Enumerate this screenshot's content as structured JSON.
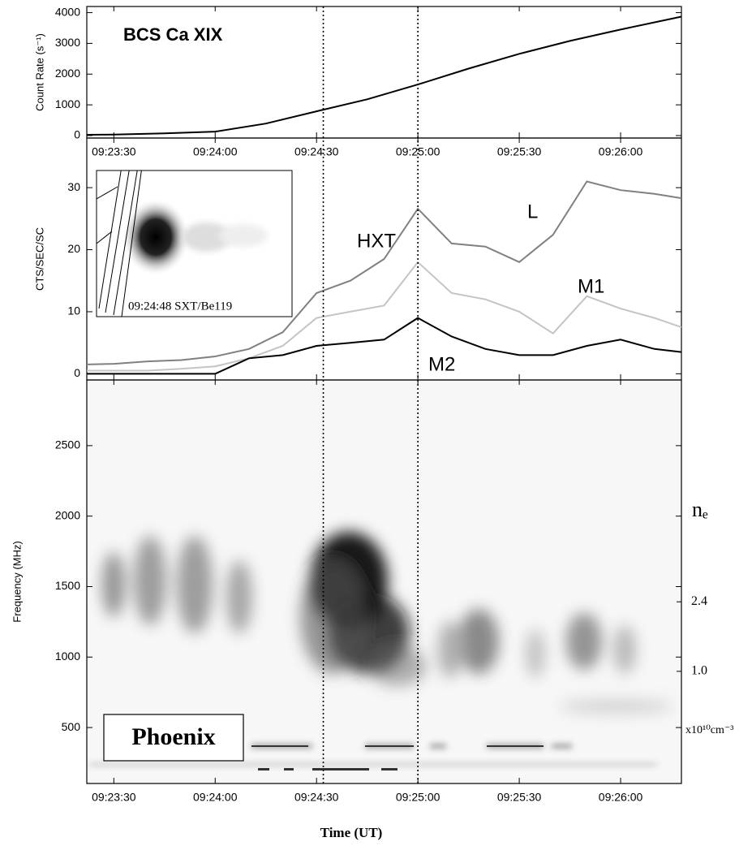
{
  "chart_data": [
    {
      "type": "line",
      "title": "BCS Ca XIX",
      "ylabel": "Count Rate (s⁻¹)",
      "x": [
        "09:23:22",
        "09:23:30",
        "09:23:45",
        "09:24:00",
        "09:24:15",
        "09:24:30",
        "09:24:45",
        "09:25:00",
        "09:25:15",
        "09:25:30",
        "09:25:45",
        "09:26:00",
        "09:26:18"
      ],
      "values": [
        25,
        30,
        70,
        130,
        390,
        790,
        1180,
        1660,
        2180,
        2660,
        3080,
        3450,
        3870
      ],
      "color": "#000000",
      "xlim": [
        "09:23:22",
        "09:26:18"
      ],
      "xticks": [
        "09:23:30",
        "09:24:00",
        "09:24:30",
        "09:25:00",
        "09:25:30",
        "09:26:00"
      ],
      "ylim": [
        -80,
        4200
      ],
      "yticks": [
        0,
        1000,
        2000,
        3000,
        4000
      ]
    },
    {
      "type": "line",
      "ylabel": "CTS/SEC/SC",
      "annotation": "HXT",
      "inset_caption": "09:24:48 SXT/Be119",
      "x": [
        "09:23:22",
        "09:23:30",
        "09:23:40",
        "09:23:50",
        "09:24:00",
        "09:24:10",
        "09:24:20",
        "09:24:30",
        "09:24:40",
        "09:24:50",
        "09:25:00",
        "09:25:10",
        "09:25:20",
        "09:25:30",
        "09:25:40",
        "09:25:50",
        "09:26:00",
        "09:26:10",
        "09:26:18"
      ],
      "series": [
        {
          "name": "L",
          "color": "#808080",
          "values": [
            1.5,
            1.6,
            2,
            2.2,
            2.8,
            4,
            6.7,
            13,
            15,
            18.5,
            26.6,
            21,
            20.5,
            18,
            22.4,
            31,
            29.6,
            29,
            28.3
          ]
        },
        {
          "name": "M1",
          "color": "#c4c4c4",
          "values": [
            0.5,
            0.5,
            0.5,
            0.8,
            1.2,
            2.5,
            4.5,
            9,
            10,
            11,
            18,
            13,
            12,
            10,
            6.5,
            12.5,
            10.5,
            9,
            7.5
          ]
        },
        {
          "name": "M2",
          "color": "#000000",
          "values": [
            0,
            0,
            0,
            0,
            0,
            2.5,
            3,
            4.5,
            5,
            5.5,
            9,
            6,
            4,
            3,
            3,
            4.5,
            5.5,
            4,
            3.5
          ]
        }
      ],
      "xlim": [
        "09:23:22",
        "09:26:18"
      ],
      "ylim": [
        -1,
        38
      ],
      "yticks": [
        0,
        10,
        20,
        30
      ]
    },
    {
      "type": "spectrogram",
      "ylabel": "Frequency (MHz)",
      "xlabel": "Time (UT)",
      "annotation": "Phoenix",
      "xlim": [
        "09:23:22",
        "09:26:18"
      ],
      "xticks": [
        "09:23:30",
        "09:24:00",
        "09:24:30",
        "09:25:00",
        "09:25:30",
        "09:26:00"
      ],
      "ylim": [
        103,
        2966
      ],
      "yticks": [
        500,
        1000,
        1500,
        2000,
        2500
      ],
      "y2label": "nₑ",
      "y2unit": "x10¹⁰cm⁻³",
      "y2scale": "sqrt",
      "y2lim": [
        0.013,
        10.9
      ],
      "y2ticks": [
        {
          "value": 1,
          "label": "1.0"
        },
        2.4
      ]
    }
  ],
  "markers": [
    "09:24:32",
    "09:25:00"
  ]
}
